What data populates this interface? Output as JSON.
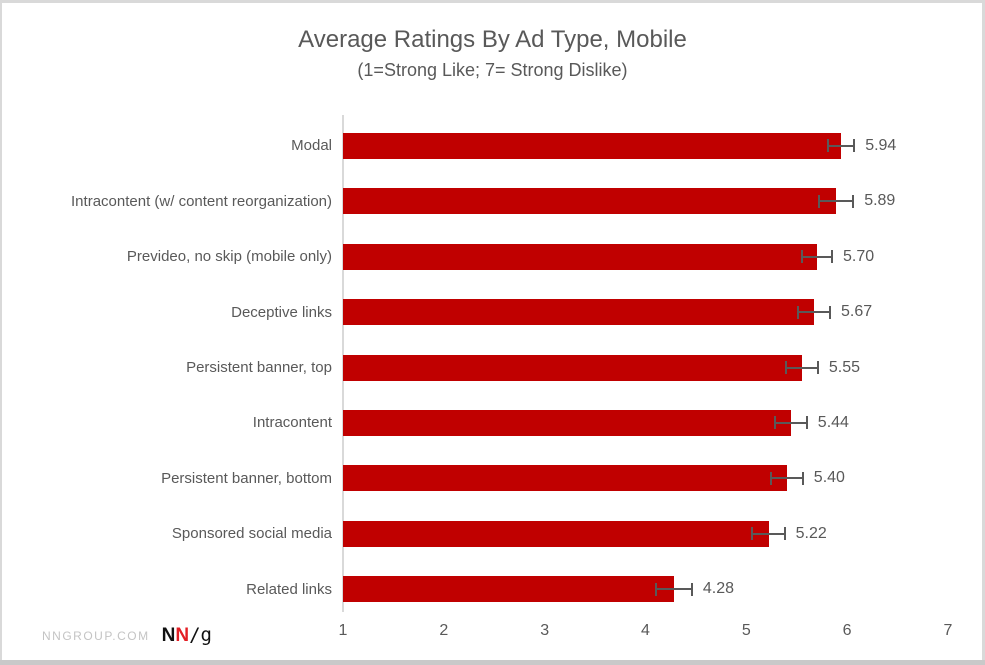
{
  "chart": {
    "title": "Average Ratings By Ad Type, Mobile",
    "subtitle": "(1=Strong Like; 7= Strong Dislike)"
  },
  "chart_data": {
    "type": "bar",
    "orientation": "horizontal",
    "title": "Average Ratings By Ad Type, Mobile",
    "subtitle": "(1=Strong Like; 7= Strong Dislike)",
    "categories": [
      "Modal",
      "Intracontent (w/ content reorganization)",
      "Prevideo, no skip (mobile only)",
      "Deceptive links",
      "Persistent banner, top",
      "Intracontent",
      "Persistent banner, bottom",
      "Sponsored social media",
      "Related links"
    ],
    "values": [
      5.94,
      5.89,
      5.7,
      5.67,
      5.55,
      5.44,
      5.4,
      5.22,
      4.28
    ],
    "value_labels": [
      "5.94",
      "5.89",
      "5.70",
      "5.67",
      "5.55",
      "5.44",
      "5.40",
      "5.22",
      "4.28"
    ],
    "error_bars": [
      0.13,
      0.17,
      0.15,
      0.16,
      0.16,
      0.16,
      0.16,
      0.16,
      0.18
    ],
    "x_ticks": [
      "1",
      "2",
      "3",
      "4",
      "5",
      "6",
      "7"
    ],
    "xlim": [
      1,
      7
    ],
    "bar_color": "#c00000",
    "error_color": "#595959",
    "axis_line_color": "#d9d9d9",
    "grid": false,
    "legend": false
  },
  "footer": {
    "site_label": "NNGROUP.COM",
    "logo": {
      "n1": "N",
      "n2": "N",
      "slash_g": "/g"
    }
  }
}
